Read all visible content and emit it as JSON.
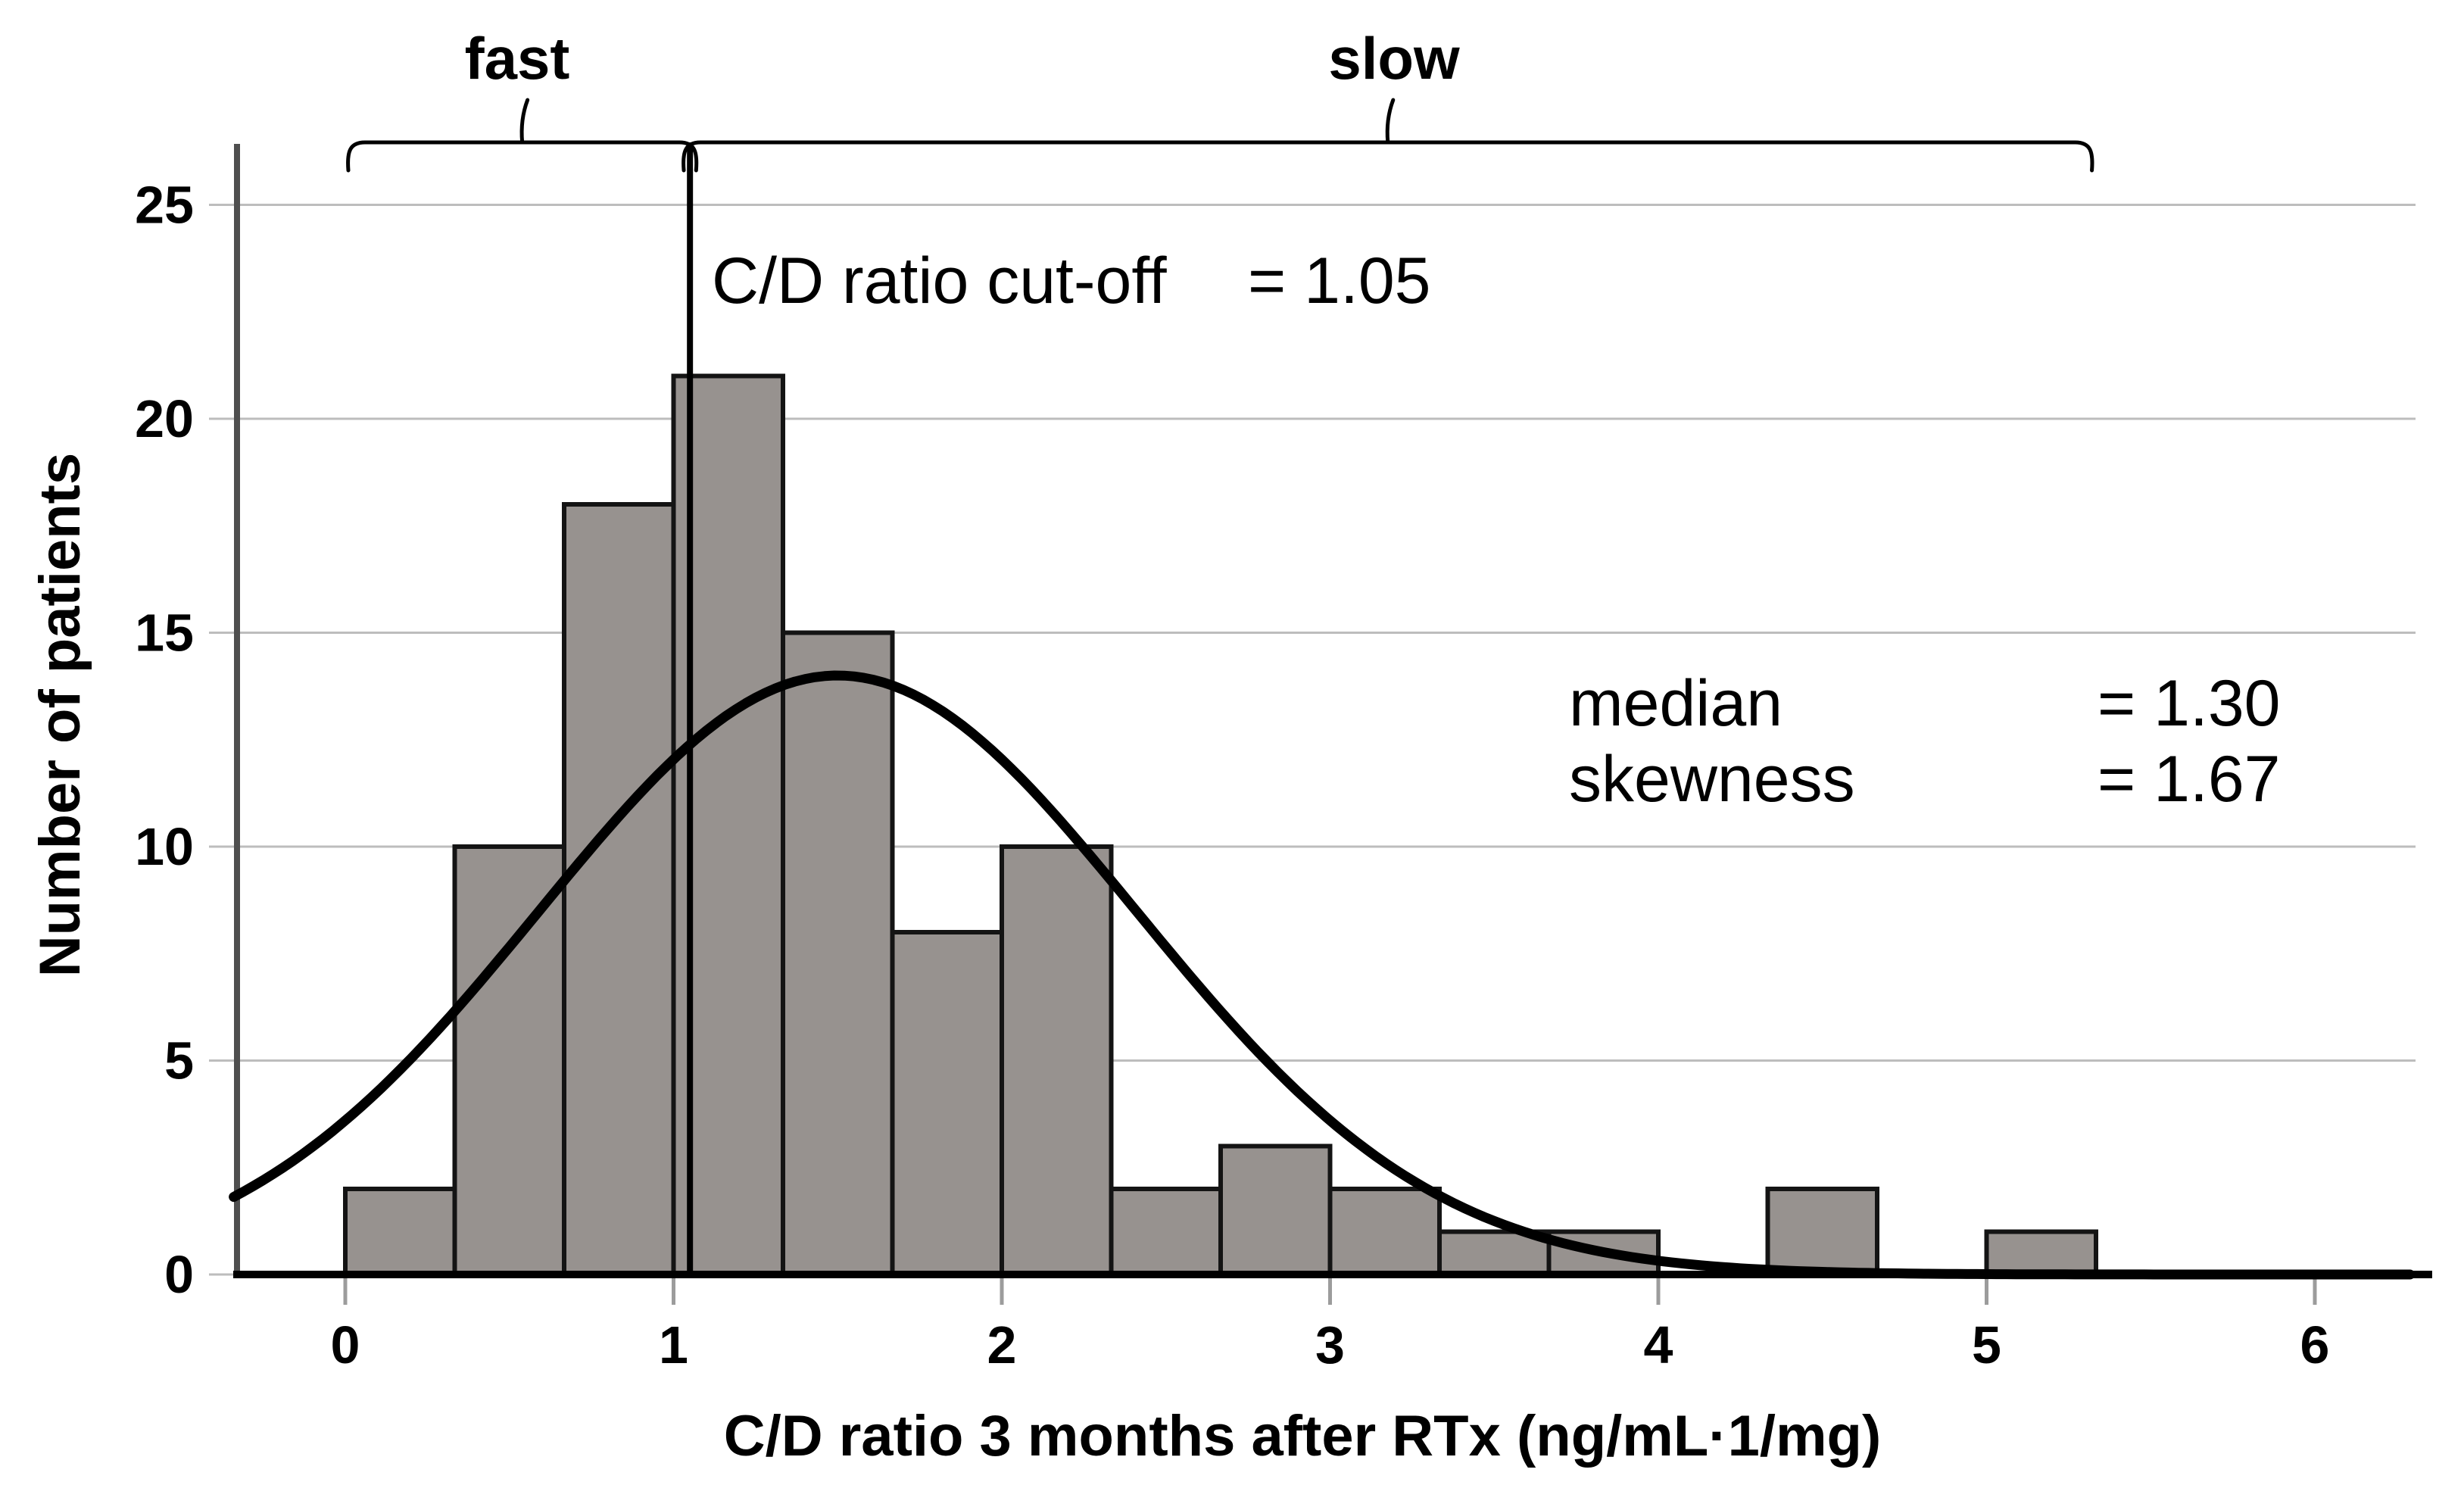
{
  "figure": {
    "background": "#ffffff",
    "text_color": "#000000"
  },
  "chart_data": {
    "type": "bar",
    "variant": "histogram",
    "title": "",
    "xlabel": "C/D ratio 3 months after RTx (ng/mL·1/mg)",
    "ylabel": "Number of patients",
    "x_ticks": [
      0,
      1,
      2,
      3,
      4,
      5,
      6
    ],
    "y_ticks": [
      0,
      5,
      10,
      15,
      20,
      25
    ],
    "xlim": [
      -0.34,
      6.31
    ],
    "ylim": [
      0,
      26.4
    ],
    "grid": true,
    "bin_start": 0,
    "bin_width": 0.3333,
    "bins": [
      {
        "x0": 0.0,
        "x1": 0.33,
        "count": 2
      },
      {
        "x0": 0.33,
        "x1": 0.67,
        "count": 10
      },
      {
        "x0": 0.67,
        "x1": 1.0,
        "count": 18
      },
      {
        "x0": 1.0,
        "x1": 1.33,
        "count": 21
      },
      {
        "x0": 1.33,
        "x1": 1.67,
        "count": 15
      },
      {
        "x0": 1.67,
        "x1": 2.0,
        "count": 8
      },
      {
        "x0": 2.0,
        "x1": 2.33,
        "count": 10
      },
      {
        "x0": 2.33,
        "x1": 2.67,
        "count": 2
      },
      {
        "x0": 2.67,
        "x1": 3.0,
        "count": 3
      },
      {
        "x0": 3.0,
        "x1": 3.33,
        "count": 2
      },
      {
        "x0": 3.33,
        "x1": 3.67,
        "count": 1
      },
      {
        "x0": 3.67,
        "x1": 4.0,
        "count": 1
      },
      {
        "x0": 4.0,
        "x1": 4.33,
        "count": 0
      },
      {
        "x0": 4.33,
        "x1": 4.67,
        "count": 2
      },
      {
        "x0": 4.67,
        "x1": 5.0,
        "count": 0
      },
      {
        "x0": 5.0,
        "x1": 5.33,
        "count": 1
      }
    ],
    "normal_curve": {
      "mean": 1.5,
      "sd": 0.91,
      "peak": 14
    },
    "cutoff": {
      "x": 1.05,
      "label": "C/D ratio cut-off",
      "value_label": "= 1.05"
    },
    "annotations": [
      {
        "label": "median",
        "value": "= 1.30"
      },
      {
        "label": "skewness",
        "value": "= 1.67"
      }
    ],
    "braces": [
      {
        "label": "fast",
        "from": 0.0,
        "to": 1.05
      },
      {
        "label": "slow",
        "from": 1.05,
        "to": 5.33
      }
    ],
    "colors": {
      "bar_fill": "#97928f",
      "bar_border": "#141414",
      "gridline": "#bdbdbd",
      "x_axis": "#000000",
      "y_axis": "#4f4f4f",
      "tick": "#9c9c9c",
      "curve": "#000000",
      "cutoff_line": "#000000",
      "brace": "#000000"
    }
  }
}
